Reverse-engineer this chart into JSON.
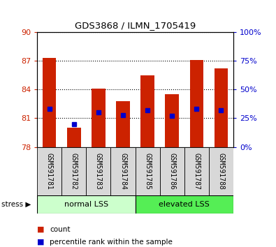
{
  "title": "GDS3868 / ILMN_1705419",
  "samples": [
    "GSM591781",
    "GSM591782",
    "GSM591783",
    "GSM591784",
    "GSM591785",
    "GSM591786",
    "GSM591787",
    "GSM591788"
  ],
  "bar_heights": [
    87.3,
    80.0,
    84.1,
    82.8,
    85.5,
    83.5,
    87.1,
    86.2
  ],
  "percentile_ranks": [
    33,
    20,
    30,
    28,
    32,
    27,
    33,
    32
  ],
  "bar_bottom": 78,
  "ylim_left": [
    78,
    90
  ],
  "ylim_right": [
    0,
    100
  ],
  "yticks_left": [
    78,
    81,
    84,
    87,
    90
  ],
  "yticks_right": [
    0,
    25,
    50,
    75,
    100
  ],
  "bar_color": "#cc2200",
  "percentile_color": "#0000cc",
  "group1_label": "normal LSS",
  "group2_label": "elevated LSS",
  "group1_indices": [
    0,
    1,
    2,
    3
  ],
  "group2_indices": [
    4,
    5,
    6,
    7
  ],
  "group1_color": "#ccffcc",
  "group2_color": "#55ee55",
  "legend_count": "count",
  "legend_percentile": "percentile rank within the sample",
  "axis_color_left": "#cc2200",
  "axis_color_right": "#0000cc",
  "bar_width": 0.55,
  "label_fontsize": 7,
  "tick_fontsize": 8
}
